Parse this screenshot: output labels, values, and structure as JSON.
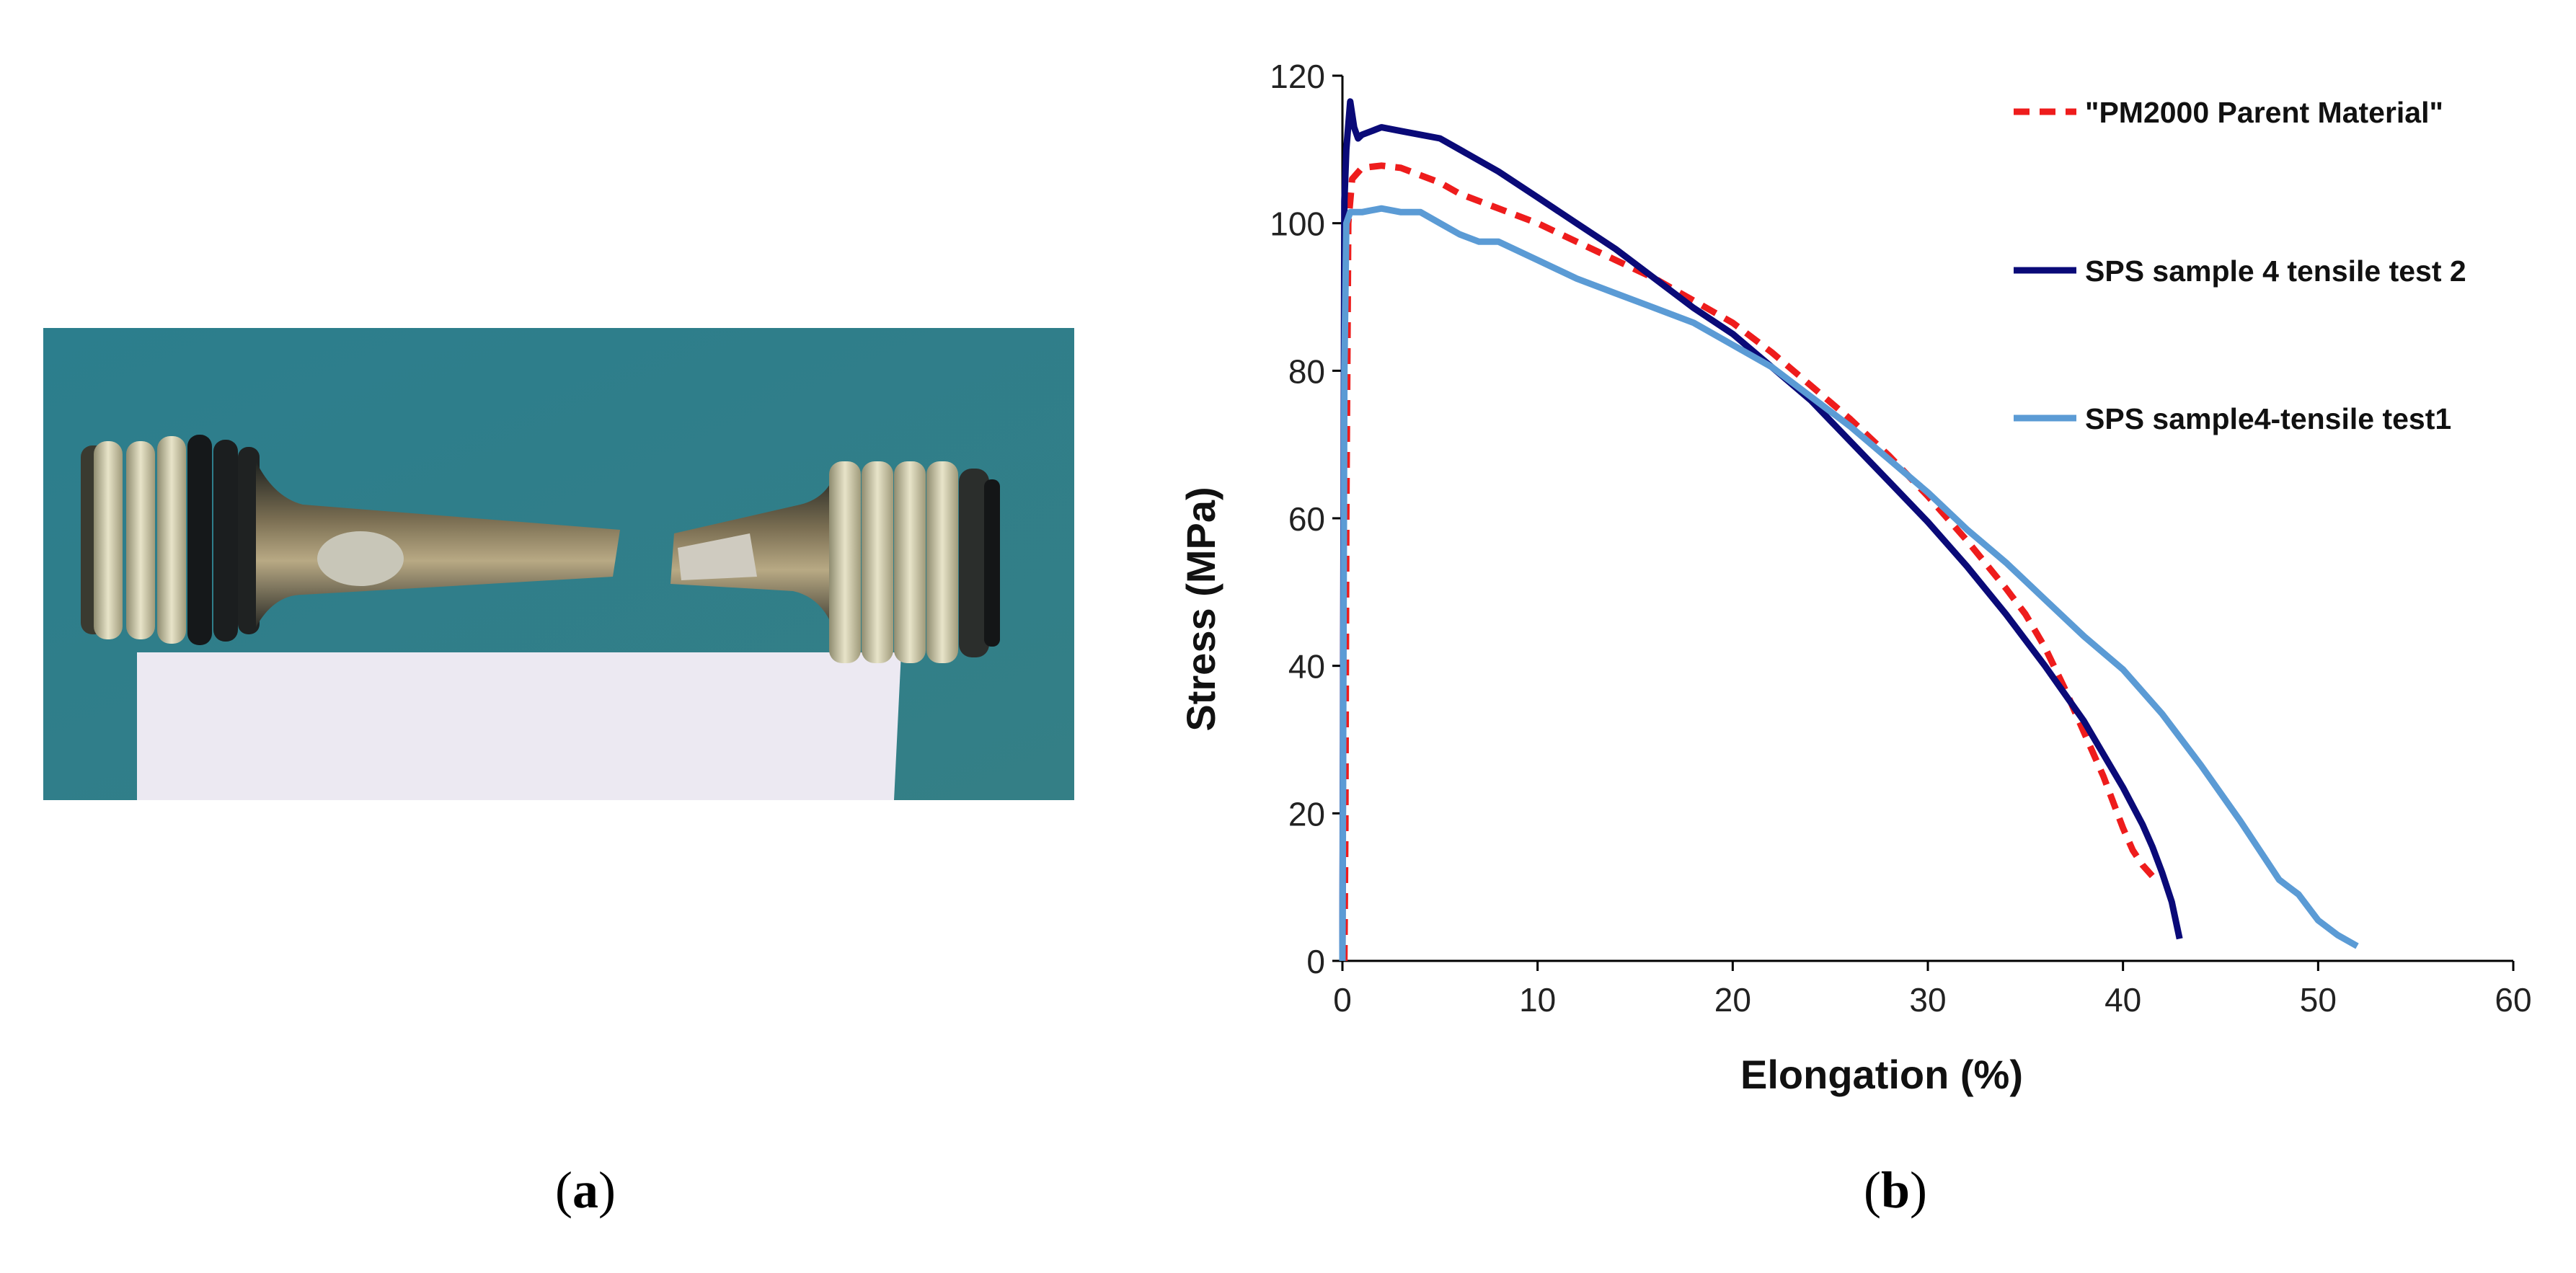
{
  "panels": {
    "a": {
      "label": "a"
    },
    "b": {
      "label": "b"
    }
  },
  "colors": {
    "background": "#ffffff",
    "photo_board": "#2f7f8c",
    "series_parent": "#ee1c1c",
    "series_test2": "#0a0a78",
    "series_test1": "#5b9bd5"
  },
  "chart_data": {
    "type": "line",
    "title": "",
    "xlabel": "Elongation (%)",
    "ylabel": "Stress (MPa)",
    "xlim": [
      0,
      60
    ],
    "ylim": [
      0,
      120
    ],
    "xticks": [
      "0",
      "10",
      "20",
      "30",
      "40",
      "50",
      "60"
    ],
    "yticks": [
      "0",
      "20",
      "40",
      "60",
      "80",
      "100",
      "120"
    ],
    "grid": false,
    "legend_position": "top-right",
    "series": [
      {
        "name": "\"PM2000 Parent Material\"",
        "style": "dashed",
        "color": "#ee1c1c",
        "x": [
          0.1,
          0.15,
          0.2,
          0.3,
          0.5,
          1,
          2,
          3,
          4,
          5,
          6,
          8,
          10,
          12,
          14,
          16,
          18,
          20,
          22,
          24,
          26,
          28,
          30,
          32,
          34,
          35,
          36,
          37,
          38,
          39,
          40,
          40.5,
          41,
          41.5
        ],
        "y": [
          0,
          18,
          60,
          100,
          106,
          107.5,
          107.8,
          107.5,
          106.5,
          105.5,
          104,
          102,
          100,
          97.5,
          95,
          92.5,
          89.5,
          86.5,
          82.5,
          78,
          73.5,
          68.5,
          63,
          57,
          50.5,
          47,
          42.5,
          37,
          31,
          25,
          18,
          15,
          13,
          11.5
        ]
      },
      {
        "name": "SPS sample 4 tensile test 2",
        "style": "solid",
        "color": "#0a0a78",
        "x": [
          0,
          0.1,
          0.2,
          0.4,
          0.6,
          0.8,
          1,
          1.5,
          2,
          3,
          4,
          5,
          6,
          8,
          10,
          12,
          14,
          16,
          18,
          20,
          22,
          24,
          26,
          28,
          30,
          32,
          34,
          36,
          38,
          39,
          40,
          41,
          41.5,
          42,
          42.5,
          42.9
        ],
        "y": [
          0,
          103,
          110,
          116.5,
          113,
          111.5,
          112,
          112.5,
          113,
          112.5,
          112,
          111.5,
          110,
          107,
          103.5,
          100,
          96.5,
          92.5,
          88.5,
          85,
          80.5,
          76,
          70.5,
          65,
          59.5,
          53.5,
          47,
          40,
          32.5,
          28,
          23.5,
          18.5,
          15.5,
          12,
          8,
          3
        ]
      },
      {
        "name": "SPS sample4-tensile test1",
        "style": "solid",
        "color": "#5b9bd5",
        "x": [
          0,
          0.1,
          0.2,
          0.4,
          1,
          2,
          3,
          4,
          5,
          6,
          7,
          8,
          10,
          12,
          14,
          16,
          18,
          20,
          22,
          24,
          26,
          28,
          30,
          32,
          34,
          36,
          38,
          40,
          42,
          44,
          46,
          48,
          49,
          50,
          51,
          52
        ],
        "y": [
          0,
          80,
          100,
          101.5,
          101.5,
          102,
          101.5,
          101.5,
          100,
          98.5,
          97.5,
          97.5,
          95,
          92.5,
          90.5,
          88.5,
          86.5,
          83.5,
          80.5,
          76.5,
          72.5,
          68,
          63.5,
          58.5,
          54,
          49,
          44,
          39.5,
          33.5,
          26.5,
          19,
          11,
          9,
          5.5,
          3.5,
          2
        ]
      }
    ]
  }
}
